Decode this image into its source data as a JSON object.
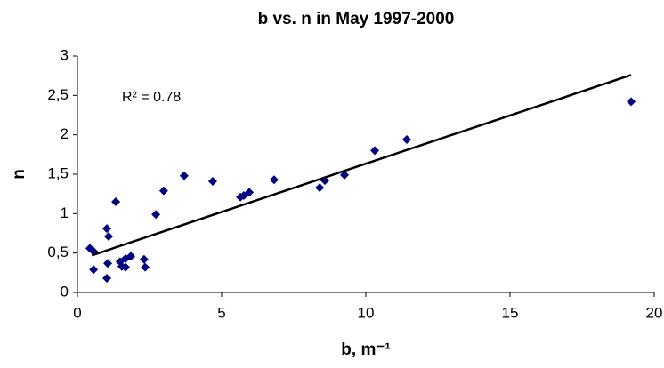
{
  "chart_data": {
    "type": "scatter",
    "title": "b vs. n in May 1997-2000",
    "x_label": "b, m⁻¹",
    "y_label": "n",
    "annotation": "R² = 0.78",
    "series": [
      {
        "color": "#000080",
        "x": [
          0.43,
          0.56,
          0.56,
          1.02,
          1.08,
          1.05,
          1.02,
          1.33,
          1.48,
          1.54,
          1.67,
          1.67,
          1.85,
          2.31,
          2.35,
          2.72,
          2.99,
          3.7,
          4.69,
          5.65,
          5.77,
          5.96,
          6.82,
          8.4,
          8.58,
          9.26,
          10.31,
          11.42,
          19.2
        ],
        "values": [
          0.56,
          0.52,
          0.29,
          0.81,
          0.71,
          0.37,
          0.18,
          1.15,
          0.39,
          0.33,
          0.43,
          0.32,
          0.46,
          0.42,
          0.32,
          0.99,
          1.29,
          1.48,
          1.41,
          1.21,
          1.23,
          1.27,
          1.43,
          1.33,
          1.42,
          1.49,
          1.8,
          1.94,
          2.42
        ]
      }
    ],
    "trendline": {
      "color": "#000000",
      "x": [
        0.5,
        19.2
      ],
      "values": [
        0.47,
        2.76
      ]
    },
    "xlim": [
      0,
      20
    ],
    "xticks": [
      0,
      5,
      10,
      15,
      20
    ],
    "ylim": [
      0,
      3
    ],
    "yticks": [
      0,
      {
        "value": 0.5,
        "label": "0,5"
      },
      1,
      {
        "value": 1.5,
        "label": "1,5"
      },
      2,
      {
        "value": 2.5,
        "label": "2,5"
      },
      3
    ]
  }
}
